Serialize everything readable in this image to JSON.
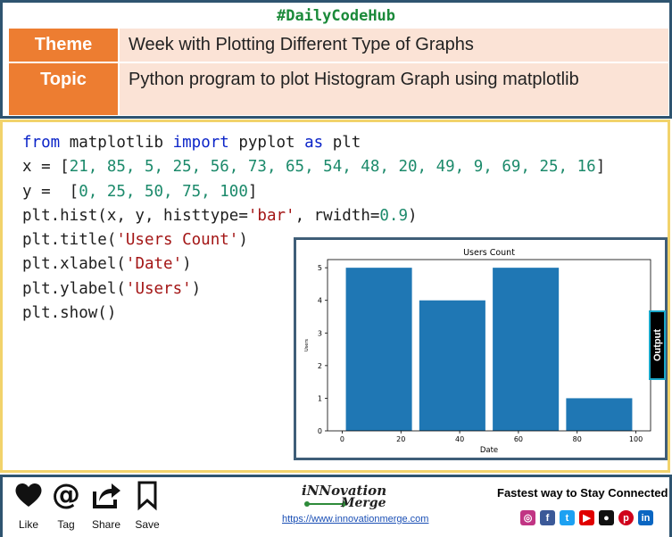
{
  "header": {
    "hashtag": "#DailyCodeHub",
    "theme_label": "Theme",
    "theme_value": "Week with Plotting Different Type of Graphs",
    "topic_label": "Topic",
    "topic_value": "Python program to plot Histogram Graph using matplotlib"
  },
  "code": {
    "line1": {
      "kw1": "from",
      "mod": " matplotlib ",
      "kw2": "import",
      "mid": " pyplot ",
      "kw3": "as",
      "end": " plt"
    },
    "line2": {
      "pre": "x = [",
      "nums": "21, 85, 5, 25, 56, 73, 65, 54, 48, 20, 49, 9, 69, 25, 16",
      "post": "]"
    },
    "line3": {
      "pre": "y =  [",
      "nums": "0, 25, 50, 75, 100",
      "post": "]"
    },
    "line4": {
      "pre": "plt.hist(x, y, histtype=",
      "str": "'bar'",
      "mid": ", rwidth=",
      "num": "0.9",
      "post": ")"
    },
    "line5": {
      "pre": "plt.title(",
      "str": "'Users Count'",
      "post": ")"
    },
    "line6": {
      "pre": "plt.xlabel(",
      "str": "'Date'",
      "post": ")"
    },
    "line7": {
      "pre": "plt.ylabel(",
      "str": "'Users'",
      "post": ")"
    },
    "line8": "plt.show()"
  },
  "output_tab_label": "Output",
  "chart_data": {
    "type": "bar",
    "title": "Users Count",
    "xlabel": "Date",
    "ylabel": "Users",
    "bins": [
      [
        0,
        25
      ],
      [
        25,
        50
      ],
      [
        50,
        75
      ],
      [
        75,
        100
      ]
    ],
    "values": [
      5,
      4,
      5,
      1
    ],
    "xticks": [
      0,
      20,
      40,
      60,
      80,
      100
    ],
    "yticks": [
      0,
      1,
      2,
      3,
      4,
      5
    ],
    "xlim": [
      -5,
      105
    ],
    "ylim": [
      0,
      5.25
    ],
    "rwidth": 0.9,
    "bar_color": "#1f77b4"
  },
  "footer": {
    "actions": [
      "Like",
      "Tag",
      "Share",
      "Save"
    ],
    "logo_line1": "iNNovation",
    "logo_line2": "Merge",
    "url": "https://www.innovationmerge.com",
    "tagline": "Fastest way to Stay Connected",
    "social_icons": [
      "instagram-icon",
      "facebook-icon",
      "twitter-icon",
      "youtube-icon",
      "github-icon",
      "pinterest-icon",
      "linkedin-icon"
    ]
  }
}
